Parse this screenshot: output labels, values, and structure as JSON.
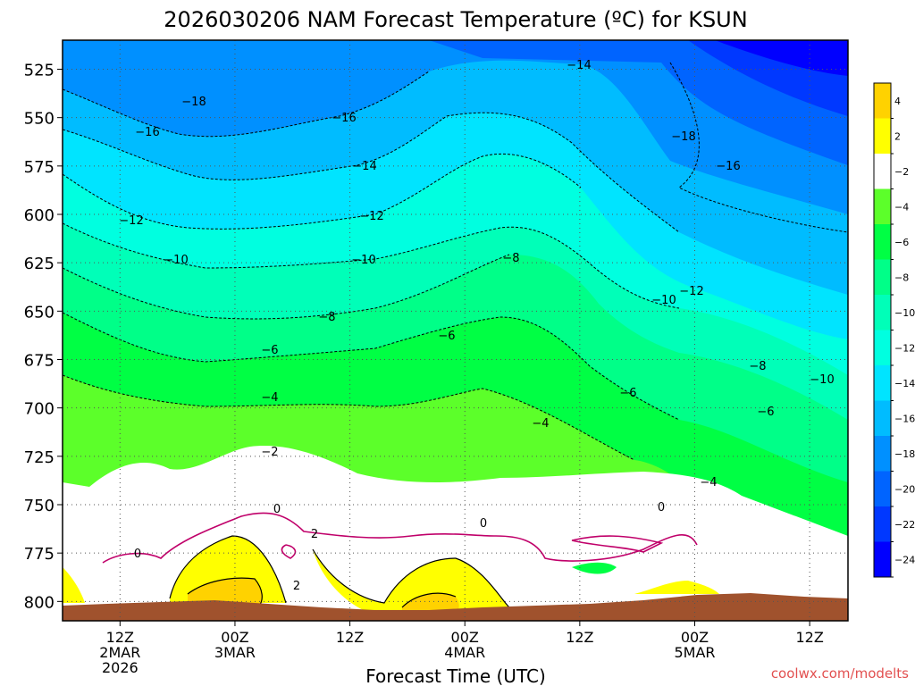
{
  "chart_data": {
    "type": "heatmap",
    "title": "2026030206 NAM Forecast Temperature (ºC) for KSUN",
    "xlabel": "Forecast Time (UTC)",
    "ylabel": "",
    "credit": "coolwx.com/modelts",
    "y_axis": {
      "range": [
        810,
        510
      ],
      "ticks": [
        "525",
        "550",
        "575",
        "600",
        "625",
        "650",
        "675",
        "700",
        "725",
        "750",
        "775",
        "800"
      ]
    },
    "x_axis": {
      "range": [
        "2026-03-02 06Z",
        "2026-03-05 16Z"
      ],
      "ticks": [
        {
          "line1": "12Z",
          "line2": "2MAR",
          "line3": "2026"
        },
        {
          "line1": "00Z",
          "line2": "3MAR",
          "line3": ""
        },
        {
          "line1": "12Z",
          "line2": "",
          "line3": ""
        },
        {
          "line1": "00Z",
          "line2": "4MAR",
          "line3": ""
        },
        {
          "line1": "12Z",
          "line2": "",
          "line3": ""
        },
        {
          "line1": "00Z",
          "line2": "5MAR",
          "line3": ""
        },
        {
          "line1": "12Z",
          "line2": "",
          "line3": ""
        }
      ]
    },
    "grid": true,
    "colorbar": {
      "ticks": [
        "4",
        "2",
        "−2",
        "−4",
        "−6",
        "−8",
        "−10",
        "−12",
        "−14",
        "−16",
        "−18",
        "−20",
        "−22",
        "−24"
      ],
      "colors": [
        "#ffd200",
        "#ffff00",
        "#ffffff",
        "#5cff2a",
        "#00ff44",
        "#00ff88",
        "#00ffb8",
        "#00ffe0",
        "#00e4ff",
        "#00bcff",
        "#0090ff",
        "#0064ff",
        "#0038ff",
        "#0000ff"
      ]
    },
    "contour_labels": [
      "−18",
      "−16",
      "−14",
      "−12",
      "−10",
      "−8",
      "−6",
      "−4",
      "−2",
      "0",
      "2"
    ],
    "terrain_color": "#a0522d"
  }
}
